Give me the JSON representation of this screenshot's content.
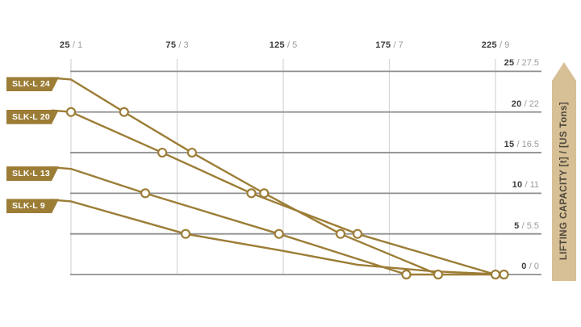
{
  "chart_data": {
    "type": "line",
    "title": "",
    "xlabel": "",
    "ylabel": "LIFTING CAPACITY [t] / [US Tons]",
    "grid": true,
    "legend_position": "left-badges",
    "marker_style": "open circles where curves cross capacity gridlines (multiples of 5 t)",
    "xlim": [
      25,
      241
    ],
    "ylim": [
      0,
      26
    ],
    "x_ticks": [
      {
        "primary": "25",
        "secondary": "1",
        "value": 25
      },
      {
        "primary": "75",
        "secondary": "3",
        "value": 75
      },
      {
        "primary": "125",
        "secondary": "5",
        "value": 125
      },
      {
        "primary": "175",
        "secondary": "7",
        "value": 175
      },
      {
        "primary": "225",
        "secondary": "9",
        "value": 225
      }
    ],
    "y_ticks": [
      {
        "primary": "25",
        "secondary": "27.5",
        "value": 25
      },
      {
        "primary": "20",
        "secondary": "22",
        "value": 20
      },
      {
        "primary": "15",
        "secondary": "16.5",
        "value": 15
      },
      {
        "primary": "10",
        "secondary": "11",
        "value": 10
      },
      {
        "primary": "5",
        "secondary": "5.5",
        "value": 5
      },
      {
        "primary": "0",
        "secondary": "0",
        "value": 0
      }
    ],
    "series": [
      {
        "name": "SLK-L 24",
        "points": [
          [
            25,
            24
          ],
          [
            50,
            20
          ],
          [
            82,
            15
          ],
          [
            116,
            10
          ],
          [
            152,
            5
          ],
          [
            198,
            0
          ]
        ]
      },
      {
        "name": "SLK-L 20",
        "points": [
          [
            25,
            20
          ],
          [
            68,
            15
          ],
          [
            110,
            10
          ],
          [
            160,
            5
          ],
          [
            225,
            0
          ]
        ]
      },
      {
        "name": "SLK-L 13",
        "points": [
          [
            25,
            13
          ],
          [
            60,
            10
          ],
          [
            123,
            5
          ],
          [
            183,
            0
          ]
        ]
      },
      {
        "name": "SLK-L 9",
        "points": [
          [
            25,
            9
          ],
          [
            79,
            5
          ],
          [
            123,
            3
          ],
          [
            160,
            1.2
          ],
          [
            195,
            0.4
          ],
          [
            229,
            0
          ]
        ]
      }
    ]
  },
  "axis": {
    "arrow_label": "LIFTING CAPACITY [t] / [US Tons]"
  },
  "colors": {
    "curve_gold": "#9c7d36",
    "badge_gold": "#9c7d36",
    "badge_text": "#ffffff",
    "grid_horizontal": "#8f8f8f",
    "grid_vertical": "#d6d6d6",
    "tick_primary": "#3d3c3a",
    "tick_secondary": "#9c9b99",
    "arrow_fill": "#d7c096",
    "arrow_text": "#4f473c",
    "marker_fill": "#ffffff",
    "background": "#ffffff"
  }
}
